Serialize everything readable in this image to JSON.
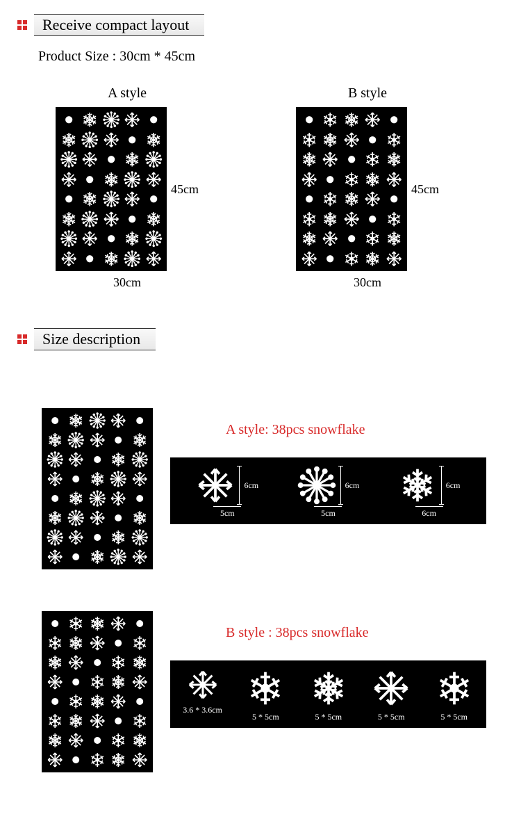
{
  "header1": {
    "title": "Receive compact layout"
  },
  "product_size_label": "Product Size : 30cm * 45cm",
  "styles": {
    "a": {
      "label": "A style",
      "width": "30cm",
      "height": "45cm"
    },
    "b": {
      "label": "B style",
      "width": "30cm",
      "height": "45cm"
    }
  },
  "header2": {
    "title": "Size description"
  },
  "detail_a": {
    "title": "A style:  38pcs snowflake",
    "title_color": "#d82a2a",
    "items": [
      {
        "w": "5cm",
        "h": "6cm"
      },
      {
        "w": "5cm",
        "h": "6cm"
      },
      {
        "w": "6cm",
        "h": "6cm"
      }
    ]
  },
  "detail_b": {
    "title": "B style : 38pcs snowflake",
    "title_color": "#d82a2a",
    "items": [
      {
        "label": "3.6 * 3.6cm"
      },
      {
        "label": "5 * 5cm"
      },
      {
        "label": "5 * 5cm"
      },
      {
        "label": "5 * 5cm"
      },
      {
        "label": "5 * 5cm"
      }
    ]
  },
  "colors": {
    "accent": "#d82a2a",
    "sheet_bg": "#000000",
    "flake": "#ffffff",
    "page_bg": "#ffffff",
    "text": "#000000"
  },
  "sheet": {
    "cols": 5,
    "rows": 8,
    "piece_count": 38
  }
}
